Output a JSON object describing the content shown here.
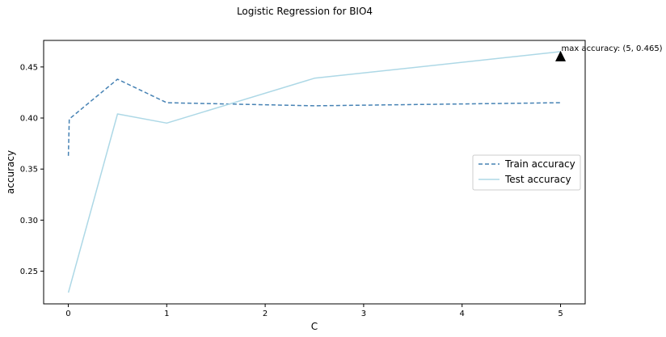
{
  "chart_data": {
    "type": "line",
    "title": "Logistic Regression for BIO4",
    "xlabel": "C",
    "ylabel": "accuracy",
    "xlim": [
      -0.25,
      5.25
    ],
    "ylim": [
      0.218,
      0.476
    ],
    "xticks": [
      "0",
      "1",
      "2",
      "3",
      "4",
      "5"
    ],
    "yticks": [
      "0.25",
      "0.30",
      "0.35",
      "0.40",
      "0.45"
    ],
    "grid": false,
    "legend_position": "center-right",
    "series": [
      {
        "name": "Train accuracy",
        "style": "dashed",
        "color": "#4682b4",
        "x": [
          0.001,
          0.01,
          0.5,
          1,
          2.5,
          5
        ],
        "y": [
          0.363,
          0.399,
          0.438,
          0.415,
          0.412,
          0.415
        ]
      },
      {
        "name": "Test accuracy",
        "style": "solid",
        "color": "#add8e6",
        "x": [
          0.001,
          0.5,
          1,
          2.5,
          5
        ],
        "y": [
          0.229,
          0.404,
          0.395,
          0.439,
          0.465
        ]
      }
    ],
    "annotation": {
      "text": "max accuracy: (5, 0.465)",
      "x": 5,
      "y": 0.465,
      "marker": "triangle",
      "marker_color": "#000000"
    }
  }
}
